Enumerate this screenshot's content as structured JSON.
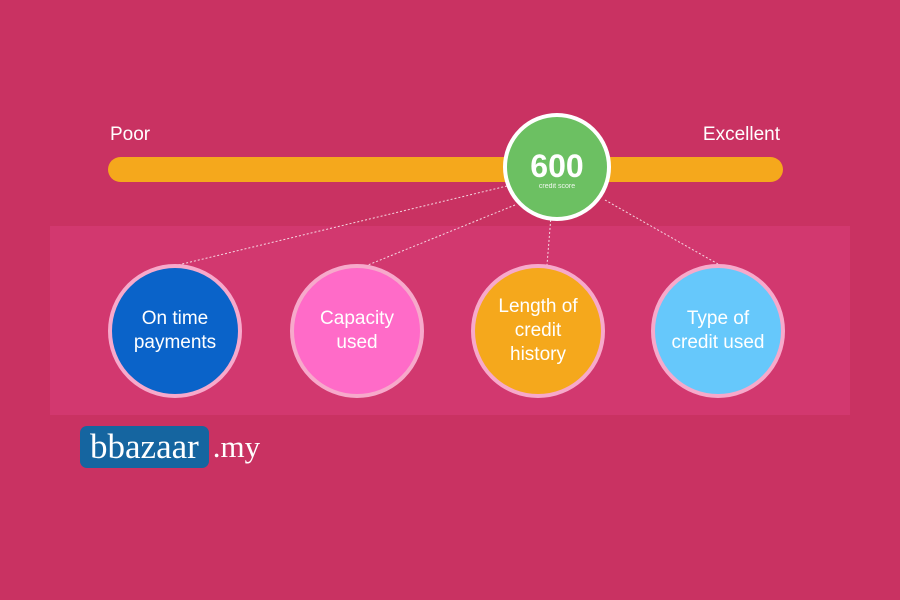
{
  "scale": {
    "low_label": "Poor",
    "high_label": "Excellent"
  },
  "score": {
    "value": "600",
    "caption": "credit score",
    "color": "#6cc062"
  },
  "factors": [
    {
      "label": "On time\npayments",
      "color": "#0a63c9"
    },
    {
      "label": "Capacity\nused",
      "color": "#ff6bc8"
    },
    {
      "label": "Length of\ncredit\nhistory",
      "color": "#f5a81c"
    },
    {
      "label": "Type of\ncredit used",
      "color": "#66c8fb"
    }
  ],
  "logo": {
    "brand": "bbazaar",
    "domain": ".my"
  },
  "colors": {
    "background": "#c93262",
    "bar": "#f5a81c",
    "logo_box": "#1565a0"
  }
}
